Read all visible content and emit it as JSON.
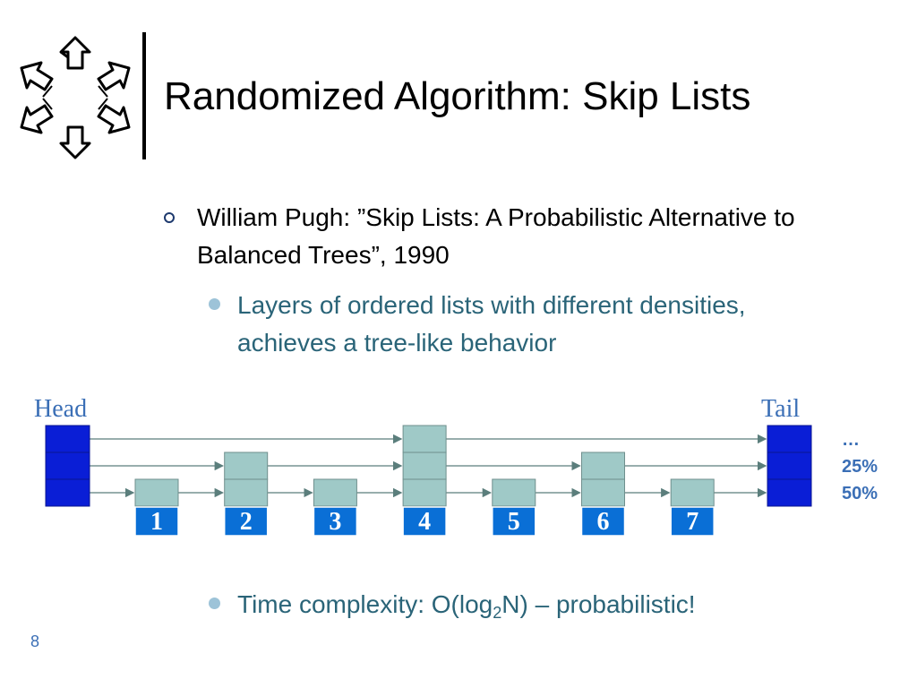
{
  "slide": {
    "title": "Randomized Algorithm: Skip Lists",
    "page_number": "8"
  },
  "bullets": {
    "main": "William Pugh: ”Skip Lists: A Probabilistic Alternative to Balanced Trees”, 1990",
    "sub1": "Layers of ordered lists with different densities, achieves a tree-like behavior",
    "sub2_prefix": "Time complexity: O(log",
    "sub2_subscript": "2",
    "sub2_suffix": "N) – probabilistic!"
  },
  "diagram": {
    "head_label": "Head",
    "tail_label": "Tail",
    "level_labels": [
      "50%",
      "25%",
      "…"
    ],
    "nodes": [
      {
        "key": "1",
        "levels": 1
      },
      {
        "key": "2",
        "levels": 2
      },
      {
        "key": "3",
        "levels": 1
      },
      {
        "key": "4",
        "levels": 3
      },
      {
        "key": "5",
        "levels": 1
      },
      {
        "key": "6",
        "levels": 2
      },
      {
        "key": "7",
        "levels": 1
      }
    ],
    "colors": {
      "sentinel": "#0a1ed6",
      "node_fill": "#9fc9c7",
      "key_fill": "#0a6fd6",
      "arrow": "#5b7e7c"
    }
  }
}
